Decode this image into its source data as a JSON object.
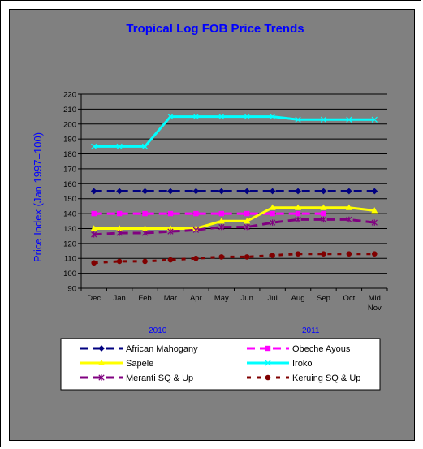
{
  "chart_data": {
    "type": "line",
    "title": "Tropical Log FOB Price Trends",
    "ylabel": "Price Index (Jan 1997=100)",
    "xlabel": "",
    "ylim": [
      90,
      220
    ],
    "yticks": [
      90,
      100,
      110,
      120,
      130,
      140,
      150,
      160,
      170,
      180,
      190,
      200,
      210,
      220
    ],
    "categories": [
      "Dec",
      "Jan",
      "Feb",
      "Mar",
      "Apr",
      "May",
      "Jun",
      "Jul",
      "Aug",
      "Sep",
      "Oct",
      "Mid Nov"
    ],
    "year_labels": [
      "2010",
      "2011"
    ],
    "grid": true,
    "legend_position": "bottom",
    "series": [
      {
        "name": "African Mahogany",
        "color": "#000080",
        "style": "dash-diamond",
        "values": [
          155,
          155,
          155,
          155,
          155,
          155,
          155,
          155,
          155,
          155,
          155,
          155
        ]
      },
      {
        "name": "Obeche Ayous",
        "color": "#ff00ff",
        "style": "dash-square",
        "values": [
          140,
          140,
          140,
          140,
          140,
          140,
          140,
          140,
          140,
          140,
          null,
          null
        ]
      },
      {
        "name": "Sapele",
        "color": "#ffff00",
        "style": "solid-triangle",
        "values": [
          130,
          130,
          130,
          130,
          130,
          135,
          135,
          144,
          144,
          144,
          144,
          142
        ]
      },
      {
        "name": "Iroko",
        "color": "#00ffff",
        "style": "solid-x",
        "values": [
          185,
          185,
          185,
          205,
          205,
          205,
          205,
          205,
          203,
          203,
          203,
          203
        ]
      },
      {
        "name": "Meranti SQ & Up",
        "color": "#800080",
        "style": "dash-star",
        "values": [
          126,
          127,
          127,
          128,
          129,
          131,
          131,
          134,
          136,
          136,
          136,
          134
        ]
      },
      {
        "name": "Keruing SQ & Up",
        "color": "#800000",
        "style": "dot-circle",
        "values": [
          107,
          108,
          108,
          109,
          110,
          111,
          111,
          112,
          113,
          113,
          113,
          113
        ]
      }
    ]
  }
}
